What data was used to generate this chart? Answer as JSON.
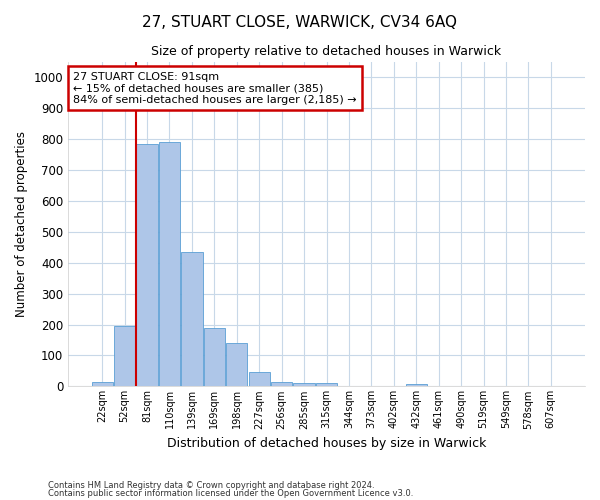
{
  "title": "27, STUART CLOSE, WARWICK, CV34 6AQ",
  "subtitle": "Size of property relative to detached houses in Warwick",
  "xlabel": "Distribution of detached houses by size in Warwick",
  "ylabel": "Number of detached properties",
  "categories": [
    "22sqm",
    "52sqm",
    "81sqm",
    "110sqm",
    "139sqm",
    "169sqm",
    "198sqm",
    "227sqm",
    "256sqm",
    "285sqm",
    "315sqm",
    "344sqm",
    "373sqm",
    "402sqm",
    "432sqm",
    "461sqm",
    "490sqm",
    "519sqm",
    "549sqm",
    "578sqm",
    "607sqm"
  ],
  "values": [
    15,
    195,
    785,
    790,
    435,
    190,
    140,
    45,
    15,
    10,
    10,
    0,
    0,
    0,
    8,
    0,
    0,
    0,
    0,
    0,
    0
  ],
  "bar_color": "#aec6e8",
  "bar_edge_color": "#5a9fd4",
  "grid_color": "#c8d8e8",
  "background_color": "#ffffff",
  "annotation_line1": "27 STUART CLOSE: 91sqm",
  "annotation_line2": "← 15% of detached houses are smaller (385)",
  "annotation_line3": "84% of semi-detached houses are larger (2,185) →",
  "annotation_box_color": "#ffffff",
  "annotation_box_edge_color": "#cc0000",
  "vline_x": 1.5,
  "vline_color": "#cc0000",
  "ylim": [
    0,
    1050
  ],
  "yticks": [
    0,
    100,
    200,
    300,
    400,
    500,
    600,
    700,
    800,
    900,
    1000
  ],
  "footnote1": "Contains HM Land Registry data © Crown copyright and database right 2024.",
  "footnote2": "Contains public sector information licensed under the Open Government Licence v3.0."
}
